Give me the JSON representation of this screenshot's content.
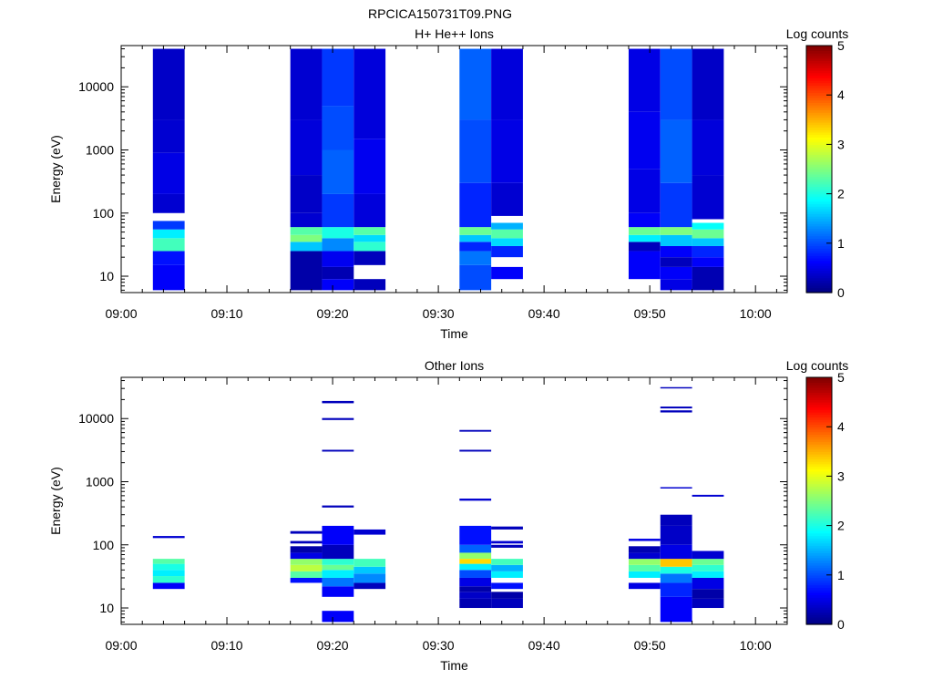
{
  "title": "RPCICA150731T09.PNG",
  "colors": {
    "frame": "#000000",
    "background": "#ffffff",
    "colormap": [
      "#00007f",
      "#0000ff",
      "#007fff",
      "#00ffff",
      "#7fff7f",
      "#ffff00",
      "#ff7f00",
      "#ff0000",
      "#7f0000"
    ]
  },
  "chart_data": [
    {
      "type": "heatmap",
      "title": "H+ He++ Ions",
      "xlabel": "Time",
      "ylabel": "Energy (eV)",
      "y_scale": "log",
      "ylim": [
        5.5,
        45000
      ],
      "xlim": [
        "09:00",
        "10:03"
      ],
      "x_ticks": [
        "09:00",
        "09:10",
        "09:20",
        "09:30",
        "09:40",
        "09:50",
        "10:00"
      ],
      "y_ticks": [
        "10",
        "100",
        "1000",
        "10000"
      ],
      "colorbar": {
        "label": "Log counts",
        "range": [
          0,
          5
        ],
        "ticks": [
          "0",
          "1",
          "2",
          "3",
          "4",
          "5"
        ]
      },
      "columns": [
        {
          "start": "09:03",
          "end": "09:06",
          "bins": [
            [
              6,
              15,
              0.6
            ],
            [
              15,
              25,
              0.7
            ],
            [
              25,
              40,
              2.2
            ],
            [
              40,
              55,
              1.8
            ],
            [
              55,
              75,
              0.9
            ],
            [
              100,
              200,
              0.4
            ],
            [
              200,
              900,
              0.5
            ],
            [
              900,
              3000,
              0.4
            ],
            [
              3000,
              40000,
              0.35
            ]
          ]
        },
        {
          "start": "09:16",
          "end": "09:19",
          "bins": [
            [
              6,
              25,
              0.2
            ],
            [
              25,
              35,
              1.6
            ],
            [
              35,
              45,
              2.5
            ],
            [
              45,
              60,
              2.3
            ],
            [
              60,
              100,
              0.4
            ],
            [
              100,
              400,
              0.35
            ],
            [
              400,
              3000,
              0.45
            ],
            [
              3000,
              40000,
              0.4
            ]
          ]
        },
        {
          "start": "09:19",
          "end": "09:22",
          "bins": [
            [
              6,
              9,
              0.6
            ],
            [
              9,
              14,
              0.25
            ],
            [
              14,
              25,
              0.55
            ],
            [
              25,
              40,
              1.3
            ],
            [
              40,
              60,
              2.0
            ],
            [
              60,
              200,
              0.9
            ],
            [
              200,
              1000,
              1.1
            ],
            [
              1000,
              5000,
              1.0
            ],
            [
              5000,
              40000,
              0.9
            ]
          ]
        },
        {
          "start": "09:22",
          "end": "09:25",
          "bins": [
            [
              6,
              9,
              0.3
            ],
            [
              15,
              25,
              0.3
            ],
            [
              25,
              35,
              2.1
            ],
            [
              35,
              45,
              1.7
            ],
            [
              45,
              60,
              2.3
            ],
            [
              60,
              200,
              0.45
            ],
            [
              200,
              1500,
              0.55
            ],
            [
              1500,
              40000,
              0.45
            ]
          ]
        },
        {
          "start": "09:32",
          "end": "09:35",
          "bins": [
            [
              6,
              15,
              1.0
            ],
            [
              15,
              25,
              1.2
            ],
            [
              25,
              35,
              0.8
            ],
            [
              35,
              45,
              1.6
            ],
            [
              45,
              60,
              2.4
            ],
            [
              60,
              300,
              0.8
            ],
            [
              300,
              3000,
              1.0
            ],
            [
              3000,
              40000,
              1.1
            ]
          ]
        },
        {
          "start": "09:35",
          "end": "09:38",
          "bins": [
            [
              9,
              14,
              0.6
            ],
            [
              20,
              30,
              0.8
            ],
            [
              30,
              40,
              1.7
            ],
            [
              40,
              55,
              2.3
            ],
            [
              55,
              70,
              1.5
            ],
            [
              90,
              300,
              0.4
            ],
            [
              300,
              3000,
              0.5
            ],
            [
              3000,
              40000,
              0.45
            ]
          ]
        },
        {
          "start": "09:48",
          "end": "09:51",
          "bins": [
            [
              9,
              25,
              0.6
            ],
            [
              25,
              35,
              0.3
            ],
            [
              35,
              45,
              1.8
            ],
            [
              45,
              60,
              2.4
            ],
            [
              60,
              100,
              0.6
            ],
            [
              100,
              500,
              0.5
            ],
            [
              500,
              4000,
              0.55
            ],
            [
              4000,
              40000,
              0.5
            ]
          ]
        },
        {
          "start": "09:51",
          "end": "09:54",
          "bins": [
            [
              6,
              9,
              0.5
            ],
            [
              9,
              14,
              0.6
            ],
            [
              14,
              20,
              0.3
            ],
            [
              20,
              30,
              0.6
            ],
            [
              30,
              45,
              1.6
            ],
            [
              45,
              60,
              2.5
            ],
            [
              60,
              300,
              0.9
            ],
            [
              300,
              3000,
              1.1
            ],
            [
              3000,
              40000,
              1.0
            ]
          ]
        },
        {
          "start": "09:54",
          "end": "09:57",
          "bins": [
            [
              6,
              14,
              0.25
            ],
            [
              14,
              20,
              0.6
            ],
            [
              20,
              30,
              0.8
            ],
            [
              30,
              40,
              1.6
            ],
            [
              40,
              55,
              2.4
            ],
            [
              55,
              70,
              1.9
            ],
            [
              80,
              400,
              0.4
            ],
            [
              400,
              3000,
              0.45
            ],
            [
              3000,
              40000,
              0.35
            ]
          ]
        }
      ]
    },
    {
      "type": "heatmap",
      "title": "Other Ions",
      "xlabel": "Time",
      "ylabel": "Energy (eV)",
      "y_scale": "log",
      "ylim": [
        5.5,
        45000
      ],
      "xlim": [
        "09:00",
        "10:03"
      ],
      "x_ticks": [
        "09:00",
        "09:10",
        "09:20",
        "09:30",
        "09:40",
        "09:50",
        "10:00"
      ],
      "y_ticks": [
        "10",
        "100",
        "1000",
        "10000"
      ],
      "colorbar": {
        "label": "Log counts",
        "range": [
          0,
          5
        ],
        "ticks": [
          "0",
          "1",
          "2",
          "3",
          "4",
          "5"
        ]
      },
      "columns": [
        {
          "start": "09:03",
          "end": "09:06",
          "bins": [
            [
              20,
              25,
              0.6
            ],
            [
              25,
              32,
              2.1
            ],
            [
              32,
              40,
              1.8
            ],
            [
              40,
              50,
              2.0
            ],
            [
              50,
              60,
              2.3
            ],
            [
              128,
              138,
              0.4
            ]
          ]
        },
        {
          "start": "09:16",
          "end": "09:19",
          "bins": [
            [
              25,
              30,
              0.7
            ],
            [
              30,
              38,
              2.3
            ],
            [
              38,
              48,
              2.8
            ],
            [
              48,
              60,
              2.6
            ],
            [
              60,
              75,
              0.5
            ],
            [
              75,
              95,
              0.2
            ],
            [
              105,
              115,
              0.3
            ],
            [
              150,
              165,
              0.3
            ]
          ]
        },
        {
          "start": "09:19",
          "end": "09:22",
          "bins": [
            [
              6,
              9,
              0.6
            ],
            [
              15,
              22,
              0.6
            ],
            [
              22,
              30,
              1.2
            ],
            [
              30,
              40,
              1.8
            ],
            [
              40,
              48,
              2.4
            ],
            [
              48,
              60,
              2.1
            ],
            [
              60,
              100,
              0.3
            ],
            [
              100,
              200,
              0.6
            ],
            [
              390,
              420,
              0.3
            ],
            [
              3000,
              3200,
              0.3
            ],
            [
              9500,
              10200,
              0.3
            ],
            [
              17500,
              19000,
              0.3
            ]
          ]
        },
        {
          "start": "09:22",
          "end": "09:25",
          "bins": [
            [
              20,
              25,
              0.3
            ],
            [
              25,
              35,
              1.3
            ],
            [
              35,
              45,
              1.6
            ],
            [
              45,
              60,
              2.2
            ],
            [
              145,
              175,
              0.4
            ]
          ]
        },
        {
          "start": "09:32",
          "end": "09:35",
          "bins": [
            [
              10,
              14,
              0.25
            ],
            [
              14,
              18,
              0.35
            ],
            [
              18,
              22,
              0.2
            ],
            [
              22,
              30,
              0.5
            ],
            [
              30,
              40,
              1.0
            ],
            [
              40,
              50,
              1.8
            ],
            [
              50,
              60,
              3.3
            ],
            [
              60,
              75,
              2.6
            ],
            [
              75,
              100,
              1.1
            ],
            [
              100,
              200,
              0.7
            ],
            [
              500,
              540,
              0.4
            ],
            [
              3000,
              3200,
              0.3
            ],
            [
              6200,
              6600,
              0.3
            ]
          ]
        },
        {
          "start": "09:35",
          "end": "09:38",
          "bins": [
            [
              10,
              14,
              0.3
            ],
            [
              14,
              18,
              0.2
            ],
            [
              20,
              25,
              0.7
            ],
            [
              30,
              38,
              1.8
            ],
            [
              38,
              48,
              1.5
            ],
            [
              48,
              60,
              2.2
            ],
            [
              90,
              100,
              0.3
            ],
            [
              105,
              115,
              0.4
            ],
            [
              175,
              195,
              0.3
            ]
          ]
        },
        {
          "start": "09:48",
          "end": "09:51",
          "bins": [
            [
              20,
              25,
              0.5
            ],
            [
              30,
              38,
              1.8
            ],
            [
              38,
              48,
              2.3
            ],
            [
              48,
              60,
              2.6
            ],
            [
              60,
              75,
              0.4
            ],
            [
              75,
              95,
              0.25
            ],
            [
              115,
              125,
              0.5
            ]
          ]
        },
        {
          "start": "09:51",
          "end": "09:54",
          "bins": [
            [
              6,
              15,
              0.6
            ],
            [
              15,
              25,
              0.8
            ],
            [
              25,
              35,
              1.2
            ],
            [
              35,
              45,
              2.0
            ],
            [
              45,
              60,
              3.4
            ],
            [
              60,
              100,
              0.5
            ],
            [
              100,
              200,
              0.35
            ],
            [
              200,
              300,
              0.3
            ],
            [
              780,
              820,
              0.4
            ],
            [
              12500,
              13500,
              0.3
            ],
            [
              14500,
              15500,
              0.3
            ],
            [
              30000,
              31500,
              0.3
            ]
          ]
        },
        {
          "start": "09:54",
          "end": "09:57",
          "bins": [
            [
              10,
              14,
              0.3
            ],
            [
              14,
              20,
              0.2
            ],
            [
              20,
              30,
              0.5
            ],
            [
              30,
              38,
              1.8
            ],
            [
              38,
              48,
              2.1
            ],
            [
              48,
              60,
              2.4
            ],
            [
              60,
              80,
              0.4
            ],
            [
              580,
              620,
              0.4
            ]
          ]
        }
      ]
    }
  ]
}
